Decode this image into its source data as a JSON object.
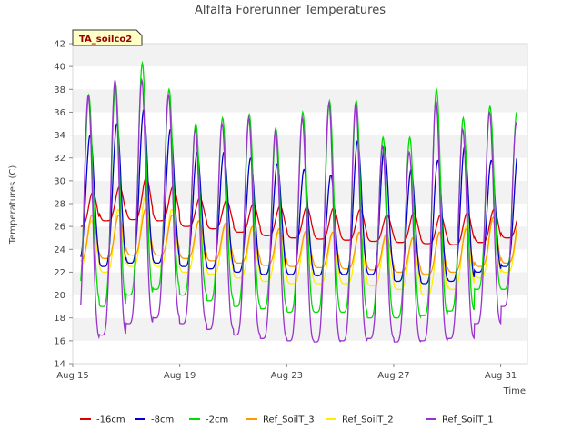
{
  "chart_data": {
    "type": "line",
    "title": "Alfalfa Forerunner Temperatures",
    "xlabel": "Time",
    "ylabel": "Temperatures (C)",
    "badge": "TA_soilco2",
    "ylim": [
      14,
      42
    ],
    "yticks": [
      14,
      16,
      18,
      20,
      22,
      24,
      26,
      28,
      30,
      32,
      34,
      36,
      38,
      40,
      42
    ],
    "xlim": [
      0,
      17.0
    ],
    "xticks": [
      {
        "value": 0,
        "label": "Aug 15"
      },
      {
        "value": 4,
        "label": "Aug 19"
      },
      {
        "value": 8,
        "label": "Aug 23"
      },
      {
        "value": 12,
        "label": "Aug 27"
      },
      {
        "value": 16,
        "label": "Aug 31"
      }
    ],
    "grid": true,
    "legend_position": "bottom",
    "x_unit": "days since Aug 15",
    "data_start_day": 0.3,
    "data_end_day": 16.6,
    "series": [
      {
        "name": "-16cm",
        "color": "#dd0000",
        "peak_day_offset": 0.75,
        "daily_min": [
          26.0,
          26.5,
          26.6,
          26.5,
          26.0,
          25.8,
          25.5,
          25.2,
          25.0,
          24.9,
          24.8,
          24.7,
          24.6,
          24.5,
          24.4,
          24.6,
          25.0
        ],
        "daily_max": [
          29.0,
          29.5,
          30.3,
          29.5,
          28.5,
          28.3,
          28.0,
          27.8,
          27.7,
          27.6,
          27.5,
          27.0,
          27.2,
          27.0,
          27.2,
          27.5,
          27.5
        ]
      },
      {
        "name": "-8cm",
        "color": "#0000cc",
        "peak_day_offset": 0.65,
        "daily_min": [
          23.0,
          22.5,
          22.8,
          22.8,
          22.5,
          22.3,
          22.0,
          21.8,
          21.8,
          21.7,
          21.8,
          21.8,
          21.2,
          21.0,
          21.2,
          22.0,
          22.5
        ],
        "daily_max": [
          34.0,
          35.0,
          36.2,
          34.5,
          32.5,
          32.5,
          32.0,
          31.5,
          31.0,
          30.5,
          33.5,
          33.0,
          31.0,
          31.8,
          33.0,
          31.8,
          32.5
        ]
      },
      {
        "name": "-2cm",
        "color": "#00dd00",
        "peak_day_offset": 0.6,
        "daily_min": [
          19.5,
          19.0,
          20.0,
          20.5,
          20.0,
          19.5,
          19.0,
          18.8,
          18.5,
          18.5,
          18.5,
          18.0,
          18.0,
          18.2,
          18.6,
          20.5,
          20.5
        ],
        "daily_max": [
          37.5,
          38.5,
          40.3,
          38.0,
          35.0,
          35.5,
          35.8,
          34.5,
          36.0,
          37.0,
          37.0,
          33.8,
          33.8,
          38.0,
          35.5,
          36.5,
          36.0
        ]
      },
      {
        "name": "Ref_SoilT_3",
        "color": "#ff9900",
        "peak_day_offset": 0.72,
        "daily_min": [
          23.0,
          23.2,
          23.5,
          23.5,
          23.2,
          23.0,
          22.8,
          22.6,
          22.5,
          22.4,
          22.3,
          22.2,
          22.0,
          21.8,
          22.0,
          22.5,
          22.8
        ],
        "daily_max": [
          27.0,
          27.0,
          27.5,
          27.0,
          26.5,
          26.3,
          26.0,
          25.8,
          25.6,
          25.5,
          25.5,
          25.3,
          25.0,
          25.5,
          25.8,
          26.8,
          27.0
        ]
      },
      {
        "name": "Ref_SoilT_2",
        "color": "#ffee00",
        "peak_day_offset": 0.7,
        "daily_min": [
          22.5,
          22.0,
          22.5,
          22.5,
          22.0,
          21.8,
          21.5,
          21.2,
          21.0,
          21.0,
          21.0,
          20.8,
          20.5,
          20.0,
          20.5,
          21.5,
          22.0
        ],
        "daily_max": [
          26.5,
          27.5,
          28.5,
          27.5,
          26.5,
          26.0,
          25.8,
          25.5,
          25.5,
          25.3,
          25.5,
          25.0,
          25.0,
          25.5,
          26.0,
          26.5,
          26.5
        ]
      },
      {
        "name": "Ref_SoilT_1",
        "color": "#9933cc",
        "peak_day_offset": 0.58,
        "daily_min": [
          16.2,
          16.5,
          17.5,
          18.0,
          17.5,
          17.0,
          16.5,
          16.2,
          16.0,
          15.9,
          16.0,
          16.2,
          15.9,
          16.0,
          16.2,
          17.5,
          19.0
        ],
        "daily_max": [
          37.5,
          38.8,
          38.8,
          37.5,
          34.5,
          35.0,
          35.5,
          34.5,
          35.5,
          36.8,
          36.8,
          33.0,
          32.5,
          37.0,
          34.5,
          36.0,
          35.0
        ]
      }
    ]
  }
}
